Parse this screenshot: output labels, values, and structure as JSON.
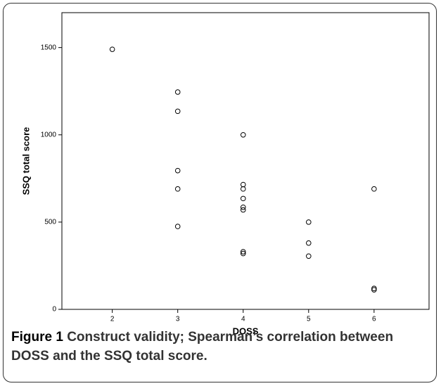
{
  "chart_data": {
    "type": "scatter",
    "x_label": "DOSS",
    "y_label": "SSQ total score",
    "x": [
      2,
      3,
      3,
      3,
      3,
      3,
      4,
      4,
      4,
      4,
      4,
      4,
      4,
      4,
      5,
      5,
      5,
      6,
      6,
      6
    ],
    "y": [
      1490,
      1245,
      1135,
      795,
      690,
      475,
      1000,
      715,
      690,
      635,
      585,
      570,
      330,
      320,
      500,
      380,
      305,
      690,
      120,
      112
    ],
    "color": "#000000",
    "xlim": [
      1.23,
      6.84
    ],
    "xticks": [
      2,
      3,
      4,
      5,
      6
    ],
    "ylim": [
      0,
      1700
    ],
    "yticks": [
      0,
      500,
      1000,
      1500
    ]
  },
  "caption": {
    "label": "Figure 1",
    "text": "Construct validity; Spearman’s correlation between DOSS and the SSQ total score."
  }
}
